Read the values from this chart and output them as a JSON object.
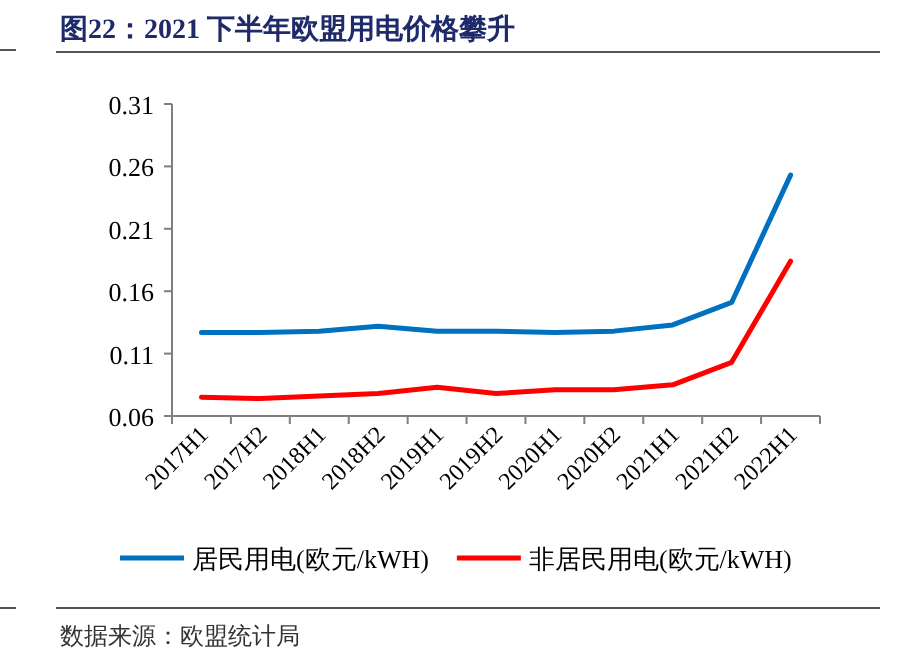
{
  "chart_data": {
    "type": "line",
    "title": "图22：2021 下半年欧盟用电价格攀升",
    "categories": [
      "2017H1",
      "2017H2",
      "2018H1",
      "2018H2",
      "2019H1",
      "2019H2",
      "2020H1",
      "2020H2",
      "2021H1",
      "2021H2",
      "2022H1"
    ],
    "series": [
      {
        "name": "居民用电(欧元/kWH)",
        "color": "#0070c0",
        "values": [
          0.127,
          0.127,
          0.128,
          0.132,
          0.128,
          0.128,
          0.127,
          0.128,
          0.133,
          0.151,
          0.253
        ]
      },
      {
        "name": "非居民用电(欧元/kWH)",
        "color": "#ff0000",
        "values": [
          0.075,
          0.074,
          0.076,
          0.078,
          0.083,
          0.078,
          0.081,
          0.081,
          0.085,
          0.103,
          0.184
        ]
      }
    ],
    "ylim": [
      0.06,
      0.31
    ],
    "yticks": [
      0.06,
      0.11,
      0.16,
      0.21,
      0.26,
      0.31
    ],
    "grid": false,
    "legend": "bottom",
    "marker": "none",
    "line_style": "solid",
    "annotations": [
      "数据来源：欧盟统计局"
    ]
  }
}
